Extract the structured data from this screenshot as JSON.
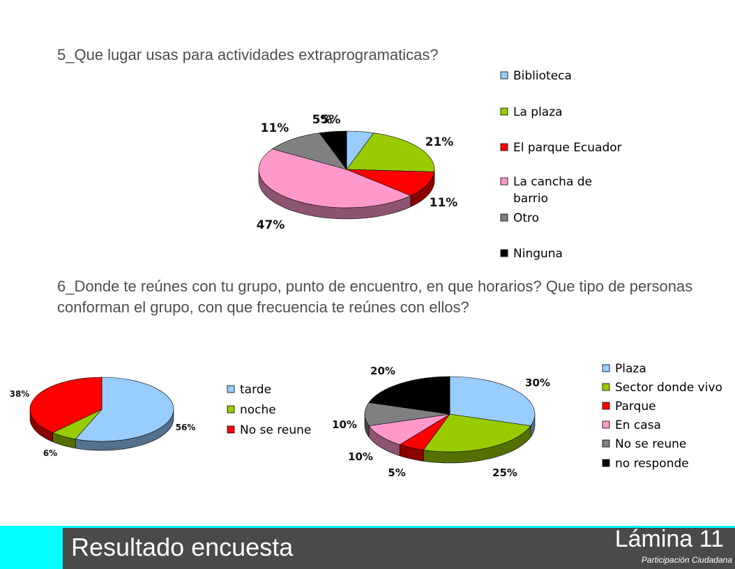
{
  "question5": "5_Que lugar usas para actividades extraprogramaticas?",
  "question6": "6_Donde te reúnes con tu grupo, punto de encuentro, en que horarios? Que tipo de personas conforman el grupo, con que frecuencia te reúnes con ellos?",
  "footer": {
    "title": "Resultado  encuesta",
    "slide": "Lámina 11",
    "subtitle": "Participación Ciudadana"
  },
  "chart_data": [
    {
      "type": "pie",
      "title": "",
      "categories": [
        "Biblioteca",
        "La plaza",
        "El parque Ecuador",
        "La cancha de barrio",
        "Otro",
        "Ninguna"
      ],
      "legend_lines": [
        [
          "Biblioteca"
        ],
        [
          "La plaza"
        ],
        [
          "El parque Ecuador"
        ],
        [
          "La cancha de",
          "barrio"
        ],
        [
          "Otro"
        ],
        [
          "Ninguna"
        ]
      ],
      "values": [
        5,
        21,
        11,
        47,
        11,
        5
      ],
      "labels": [
        "5%",
        "21%",
        "11%",
        "47%",
        "11%",
        "5%"
      ],
      "colors": [
        "#99ccff",
        "#99cc00",
        "#ff0000",
        "#ff99cc",
        "#808080",
        "#000000"
      ],
      "legend_position": "right"
    },
    {
      "type": "pie",
      "title": "",
      "categories": [
        "tarde",
        "noche",
        "No se reune"
      ],
      "legend_lines": [
        [
          "tarde"
        ],
        [
          "noche"
        ],
        [
          "No se reune"
        ]
      ],
      "values": [
        56,
        6,
        38
      ],
      "labels": [
        "56%",
        "6%",
        "38%"
      ],
      "colors": [
        "#99ccff",
        "#99cc00",
        "#ff0000"
      ],
      "legend_position": "right"
    },
    {
      "type": "pie",
      "title": "",
      "categories": [
        "Plaza",
        "Sector donde vivo",
        "Parque",
        "En casa",
        "No se reune",
        "no responde"
      ],
      "legend_lines": [
        [
          "Plaza"
        ],
        [
          "Sector donde vivo"
        ],
        [
          "Parque"
        ],
        [
          "En casa"
        ],
        [
          "No se reune"
        ],
        [
          "no responde"
        ]
      ],
      "values": [
        30,
        25,
        5,
        10,
        10,
        20
      ],
      "labels": [
        "30%",
        "25%",
        "5%",
        "10%",
        "10%",
        "20%"
      ],
      "colors": [
        "#99ccff",
        "#99cc00",
        "#ff0000",
        "#ff99cc",
        "#808080",
        "#000000"
      ],
      "legend_position": "right"
    }
  ]
}
